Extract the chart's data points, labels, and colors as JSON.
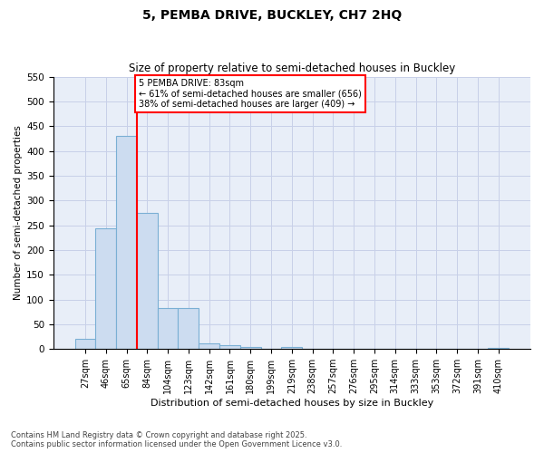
{
  "title_line1": "5, PEMBA DRIVE, BUCKLEY, CH7 2HQ",
  "title_line2": "Size of property relative to semi-detached houses in Buckley",
  "xlabel": "Distribution of semi-detached houses by size in Buckley",
  "ylabel": "Number of semi-detached properties",
  "categories": [
    "27sqm",
    "46sqm",
    "65sqm",
    "84sqm",
    "104sqm",
    "123sqm",
    "142sqm",
    "161sqm",
    "180sqm",
    "199sqm",
    "219sqm",
    "238sqm",
    "257sqm",
    "276sqm",
    "295sqm",
    "314sqm",
    "333sqm",
    "353sqm",
    "372sqm",
    "391sqm",
    "410sqm"
  ],
  "values": [
    20,
    243,
    430,
    275,
    83,
    83,
    12,
    8,
    4,
    0,
    4,
    0,
    0,
    0,
    0,
    0,
    0,
    0,
    0,
    0,
    3
  ],
  "bar_color": "#ccdcf0",
  "bar_edge_color": "#7aafd4",
  "vline_x_index": 3,
  "vline_color": "red",
  "vline_label": "5 PEMBA DRIVE: 83sqm",
  "annotation_smaller": "← 61% of semi-detached houses are smaller (656)",
  "annotation_larger": "38% of semi-detached houses are larger (409) →",
  "annotation_box_color": "red",
  "ylim": [
    0,
    550
  ],
  "yticks": [
    0,
    50,
    100,
    150,
    200,
    250,
    300,
    350,
    400,
    450,
    500,
    550
  ],
  "grid_color": "#c8d0e8",
  "background_color": "#e8eef8",
  "footnote1": "Contains HM Land Registry data © Crown copyright and database right 2025.",
  "footnote2": "Contains public sector information licensed under the Open Government Licence v3.0."
}
